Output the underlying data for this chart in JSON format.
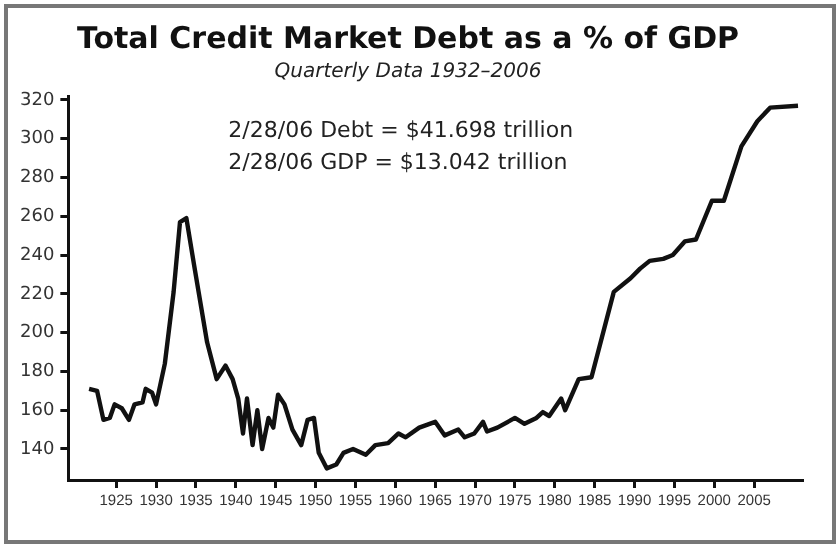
{
  "chart_data": {
    "type": "line",
    "title": "Total Credit Market Debt as a % of GDP",
    "subtitle": "Quarterly Data 1932–2006",
    "annotations": [
      "2/28/06 Debt = $41.698 trillion",
      "2/28/06 GDP = $13.042 trillion"
    ],
    "series": [
      {
        "color": "#111111",
        "x": [
          1921.6,
          1922.6,
          1923.4,
          1924.2,
          1924.8,
          1925.7,
          1926.6,
          1927.3,
          1928.3,
          1928.7,
          1929.5,
          1930,
          1931.1,
          1932.2,
          1933,
          1933.8,
          1934.8,
          1936.4,
          1937.6,
          1938.7,
          1939.6,
          1940.3,
          1940.9,
          1941.4,
          1942.1,
          1942.7,
          1943.3,
          1944.1,
          1944.7,
          1945.3,
          1946.1,
          1947.1,
          1948.2,
          1949,
          1949.8,
          1950.4,
          1951.4,
          1952.6,
          1953.5,
          1954.7,
          1956.3,
          1957.5,
          1959.1,
          1960.4,
          1961.3,
          1963,
          1965,
          1966.2,
          1967.9,
          1968.7,
          1969.9,
          1971,
          1971.5,
          1972.8,
          1975,
          1976.2,
          1977.7,
          1978.5,
          1979.3,
          1980.8,
          1981.3,
          1983,
          1984.6,
          1987.4,
          1989.5,
          1990.7,
          1991.9,
          1993.6,
          1994.8,
          1996.3,
          1997.7,
          1999.7,
          2001.2,
          2003.4,
          2005.4,
          2007,
          2010.5
        ],
        "values": [
          171,
          170,
          155,
          156,
          163,
          161,
          155,
          163,
          164,
          171,
          169,
          163,
          184,
          221,
          257,
          259,
          234,
          195,
          176,
          183,
          176,
          166,
          148,
          166,
          142,
          160,
          140,
          156,
          151,
          168,
          163,
          150,
          142,
          155,
          156,
          138,
          130,
          132,
          138,
          140,
          137,
          142,
          143,
          148,
          146,
          151,
          154,
          147,
          150,
          146,
          148,
          154,
          149,
          151,
          156,
          153,
          156,
          159,
          157,
          166,
          160,
          176,
          177,
          221,
          228,
          233,
          237,
          238,
          240,
          247,
          248,
          268,
          268,
          296,
          309,
          316,
          317
        ]
      }
    ],
    "xlim": [
      1919,
      2011
    ],
    "xticks": [
      1925,
      1930,
      1935,
      1940,
      1945,
      1950,
      1955,
      1960,
      1965,
      1970,
      1975,
      1980,
      1985,
      1990,
      1995,
      2000,
      2005
    ],
    "ylim": [
      124,
      322
    ],
    "yticks": [
      140,
      160,
      180,
      200,
      220,
      240,
      260,
      280,
      300,
      320
    ],
    "grid": false,
    "legend": false,
    "marker": "none",
    "line_style": "solid"
  }
}
